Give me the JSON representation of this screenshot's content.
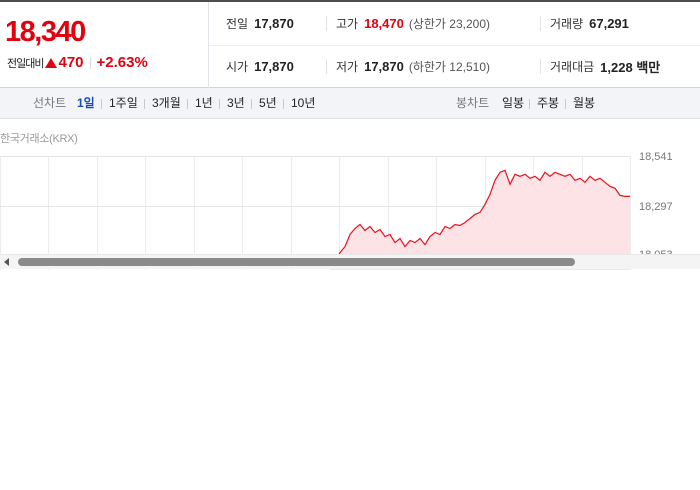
{
  "quote": {
    "price": "18,340",
    "change_label": "전일대비",
    "change_amount": "470",
    "change_rate": "+2.63%",
    "up_color": "#e2010f"
  },
  "stats": {
    "prev_close": {
      "label": "전일",
      "value": "17,870"
    },
    "high": {
      "label": "고가",
      "value": "18,470",
      "sub": "(상한가 23,200)"
    },
    "volume": {
      "label": "거래량",
      "value": "67,291"
    },
    "open": {
      "label": "시가",
      "value": "17,870"
    },
    "low": {
      "label": "저가",
      "value": "17,870",
      "sub": "(하한가 12,510)"
    },
    "trade_value": {
      "label": "거래대금",
      "value": "1,228 백만"
    }
  },
  "period_tabs": {
    "line_label": "선차트",
    "line_tabs": [
      "1일",
      "1주일",
      "3개월",
      "1년",
      "3년",
      "5년",
      "10년"
    ],
    "active": "1일",
    "candle_label": "봉차트",
    "candle_tabs": [
      "일봉",
      "주봉",
      "월봉"
    ]
  },
  "chart": {
    "source": "한국거래소(KRX)",
    "line_color": "#e8121e",
    "fill_color": "#fde3e5"
  },
  "chart_data": {
    "type": "area",
    "y_ticks": [
      "18,541",
      "18,297",
      "18,053"
    ],
    "ylim": [
      18053,
      18541
    ],
    "series": [
      {
        "x": [
          0,
          1,
          2,
          3,
          4,
          5,
          6,
          7,
          8,
          9,
          10,
          11,
          12,
          13,
          14,
          15,
          16,
          17,
          18,
          19,
          20,
          21,
          22,
          23,
          24,
          25,
          26,
          27,
          28,
          29,
          30,
          31,
          32,
          33,
          34,
          35,
          36,
          37,
          38,
          39,
          40,
          41,
          42,
          43,
          44,
          45,
          46,
          47,
          48,
          49,
          50,
          51,
          52,
          53,
          54,
          55,
          56,
          57,
          58,
          59,
          60
        ],
        "values": [
          18040,
          18020,
          18060,
          18090,
          18150,
          18180,
          18200,
          18170,
          18190,
          18160,
          18175,
          18140,
          18150,
          18110,
          18130,
          18090,
          18120,
          18110,
          18130,
          18100,
          18140,
          18160,
          18150,
          18190,
          18180,
          18200,
          18195,
          18210,
          18230,
          18250,
          18260,
          18300,
          18350,
          18420,
          18460,
          18470,
          18400,
          18450,
          18440,
          18450,
          18430,
          18440,
          18420,
          18460,
          18440,
          18460,
          18450,
          18440,
          18450,
          18420,
          18430,
          18410,
          18440,
          18420,
          18430,
          18410,
          18390,
          18380,
          18345,
          18340,
          18340
        ]
      }
    ],
    "grid": true
  }
}
